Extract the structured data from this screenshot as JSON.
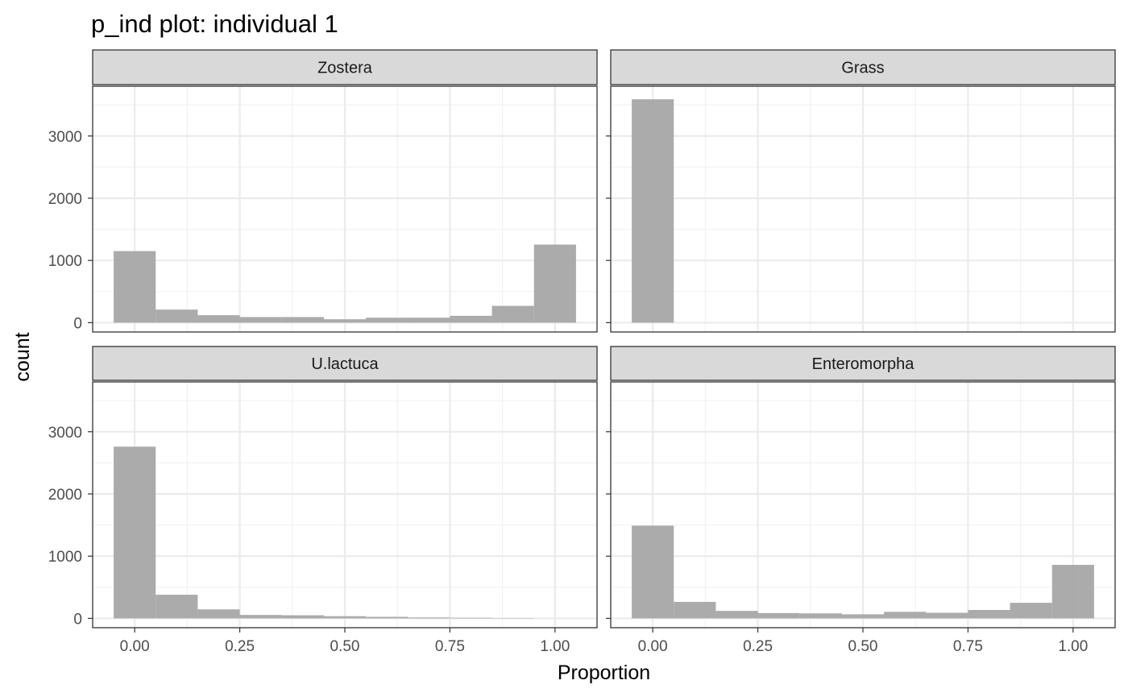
{
  "chart_data": {
    "type": "bar",
    "title": "p_ind plot: individual 1",
    "xlabel": "Proportion",
    "ylabel": "count",
    "xlim": [
      -0.1,
      1.1
    ],
    "ylim": [
      -150,
      3800
    ],
    "x_ticks": [
      {
        "value": 0,
        "label": "0.00"
      },
      {
        "value": 0.25,
        "label": "0.25"
      },
      {
        "value": 0.5,
        "label": "0.50"
      },
      {
        "value": 0.75,
        "label": "0.75"
      },
      {
        "value": 1,
        "label": "1.00"
      }
    ],
    "y_ticks": [
      {
        "value": 0,
        "label": "0"
      },
      {
        "value": 1000,
        "label": "1000"
      },
      {
        "value": 2000,
        "label": "2000"
      },
      {
        "value": 3000,
        "label": "3000"
      }
    ],
    "grid": true,
    "bin_width": 0.1,
    "bin_centers": [
      0.0,
      0.1,
      0.2,
      0.3,
      0.4,
      0.5,
      0.6,
      0.7,
      0.8,
      0.9,
      1.0
    ],
    "bar_color": "#a6a6a6",
    "panels": [
      {
        "name": "Zostera",
        "values": [
          1150,
          210,
          120,
          90,
          90,
          55,
          80,
          80,
          110,
          270,
          1255
        ]
      },
      {
        "name": "Grass",
        "values": [
          3590,
          0,
          0,
          0,
          0,
          0,
          0,
          0,
          0,
          0,
          0
        ]
      },
      {
        "name": "U.lactuca",
        "values": [
          2760,
          380,
          145,
          55,
          50,
          35,
          25,
          15,
          10,
          5,
          0
        ]
      },
      {
        "name": "Enteromorpha",
        "values": [
          1490,
          265,
          120,
          85,
          80,
          65,
          105,
          90,
          135,
          250,
          860
        ]
      }
    ]
  }
}
